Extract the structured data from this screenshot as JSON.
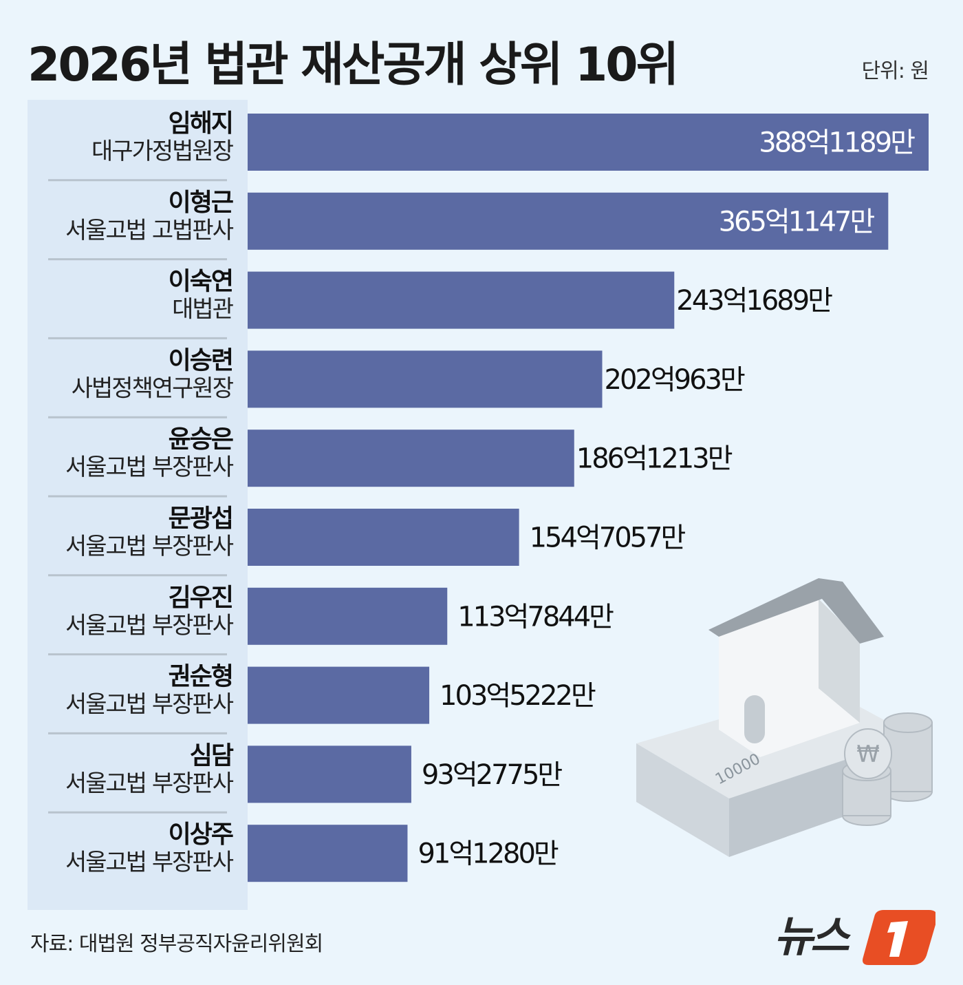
{
  "title": "2026년 법관 재산공개 상위 10위",
  "unit": "단위: 원",
  "source": "자료: 대법원 정부공직자윤리위원회",
  "logo": "뉴스1",
  "colors": {
    "bar": "#5b6aa3",
    "background": "#ebf5fc",
    "panel": "#dce9f6",
    "logo_accent": "#e84e24"
  },
  "chart_data": {
    "type": "bar",
    "orientation": "horizontal",
    "title": "2026년 법관 재산공개 상위 10위",
    "unit": "원",
    "categories": [
      {
        "name": "임해지",
        "role": "대구가정법원장"
      },
      {
        "name": "이형근",
        "role": "서울고법 고법판사"
      },
      {
        "name": "이숙연",
        "role": "대법관"
      },
      {
        "name": "이승련",
        "role": "사법정책연구원장"
      },
      {
        "name": "윤승은",
        "role": "서울고법 부장판사"
      },
      {
        "name": "문광섭",
        "role": "서울고법 부장판사"
      },
      {
        "name": "김우진",
        "role": "서울고법 부장판사"
      },
      {
        "name": "권순형",
        "role": "서울고법 부장판사"
      },
      {
        "name": "심담",
        "role": "서울고법 부장판사"
      },
      {
        "name": "이상주",
        "role": "서울고법 부장판사"
      }
    ],
    "values": [
      38811890000,
      36511470000,
      24316890000,
      20209630000,
      18612130000,
      15470570000,
      11378440000,
      10352220000,
      9327750000,
      9112800000
    ],
    "labels": [
      "388억1189만",
      "365억1147만",
      "243억1689만",
      "202억963만",
      "186억1213만",
      "154억7057만",
      "113억7844만",
      "103억5222만",
      "93억2775만",
      "91억1280만"
    ]
  }
}
